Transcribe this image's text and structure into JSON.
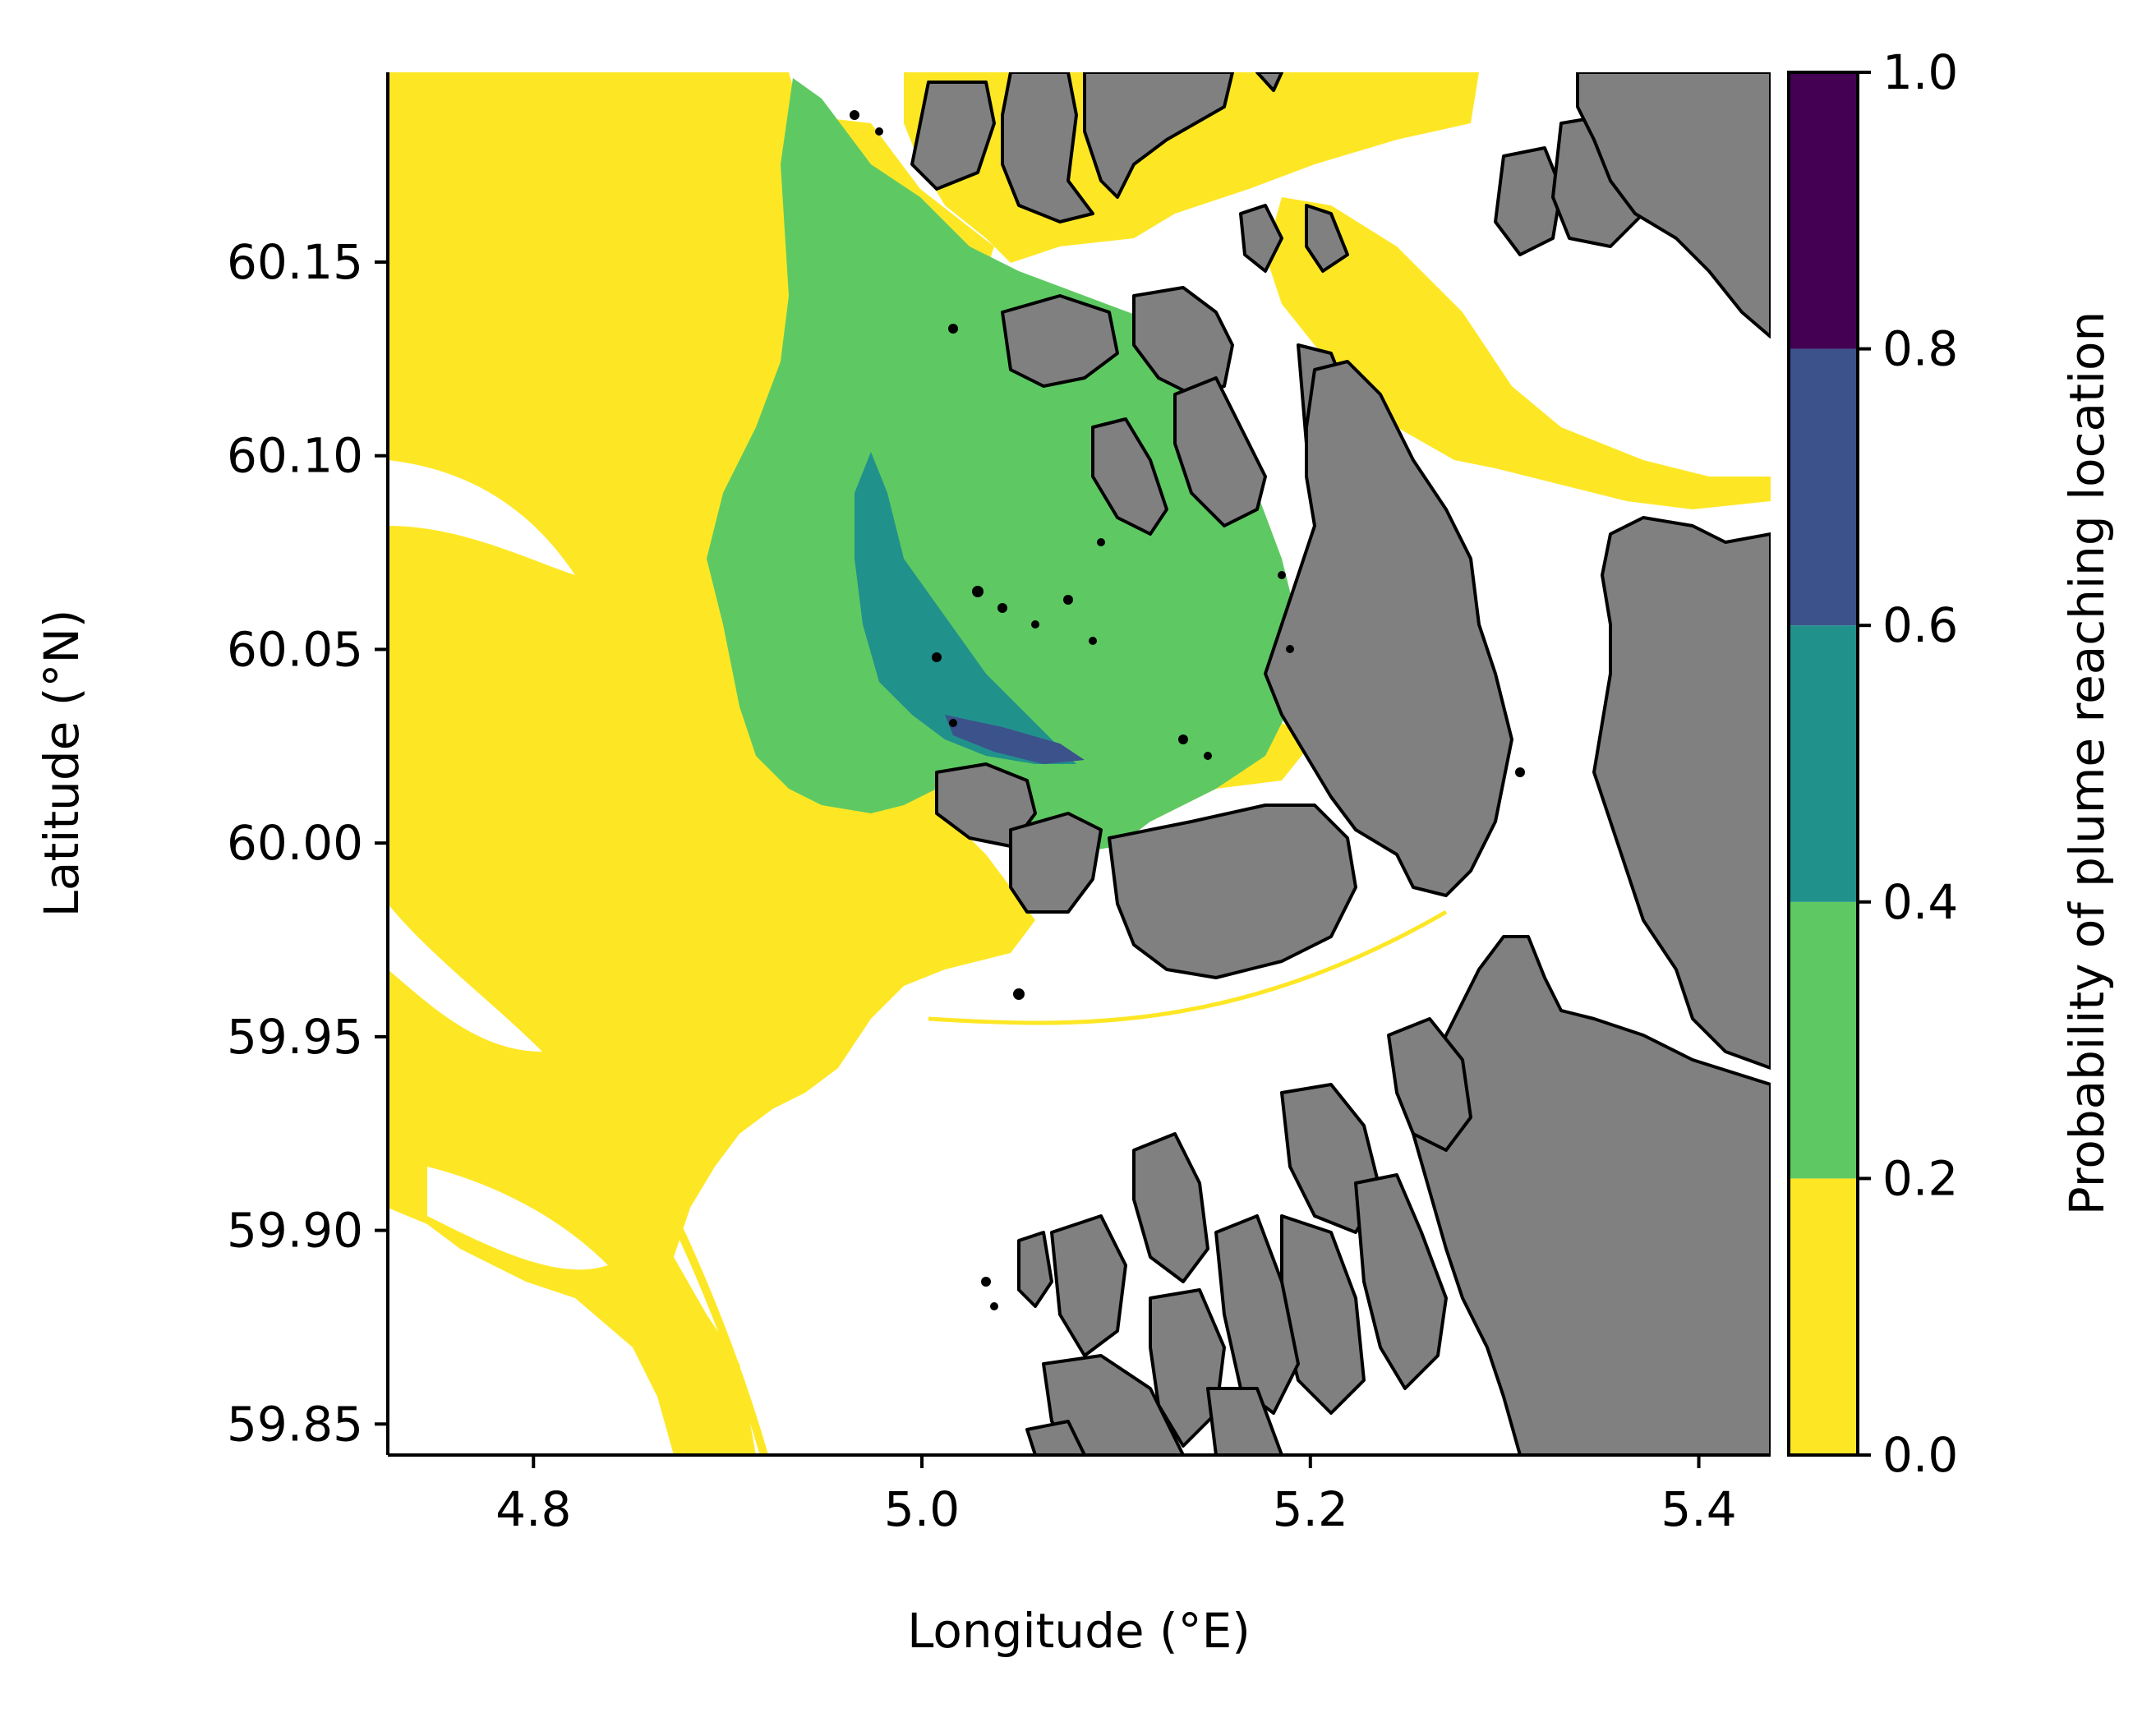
{
  "map": {
    "x_axis": {
      "label": "Longitude (°E)",
      "range": [
        4.725,
        5.437
      ],
      "ticks": [
        {
          "value": 4.8,
          "label": "4.8"
        },
        {
          "value": 5.0,
          "label": "5.0"
        },
        {
          "value": 5.2,
          "label": "5.2"
        },
        {
          "value": 5.4,
          "label": "5.4"
        }
      ]
    },
    "y_axis": {
      "label": "Latitude (°N)",
      "range": [
        59.842,
        60.199
      ],
      "ticks": [
        {
          "value": 59.85,
          "label": "59.85"
        },
        {
          "value": 59.9,
          "label": "59.90"
        },
        {
          "value": 59.95,
          "label": "59.95"
        },
        {
          "value": 60.0,
          "label": "60.00"
        },
        {
          "value": 60.05,
          "label": "60.05"
        },
        {
          "value": 60.1,
          "label": "60.10"
        },
        {
          "value": 60.15,
          "label": "60.15"
        }
      ]
    },
    "colorbar": {
      "label": "Probability of plume reaching location",
      "range": [
        0.0,
        1.0
      ],
      "ticks": [
        {
          "value": 0.0,
          "label": "0.0"
        },
        {
          "value": 0.2,
          "label": "0.2"
        },
        {
          "value": 0.4,
          "label": "0.4"
        },
        {
          "value": 0.6,
          "label": "0.6"
        },
        {
          "value": 0.8,
          "label": "0.8"
        },
        {
          "value": 1.0,
          "label": "1.0"
        }
      ],
      "bins": [
        {
          "from": 0.0,
          "to": 0.2,
          "color": "#fde725"
        },
        {
          "from": 0.2,
          "to": 0.4,
          "color": "#5ec962"
        },
        {
          "from": 0.4,
          "to": 0.6,
          "color": "#21918c"
        },
        {
          "from": 0.6,
          "to": 0.8,
          "color": "#3b528b"
        },
        {
          "from": 0.8,
          "to": 1.0,
          "color": "#440154"
        }
      ]
    },
    "colors": {
      "land": "#808080",
      "coastline": "#000000",
      "water": "#ffffff"
    }
  }
}
